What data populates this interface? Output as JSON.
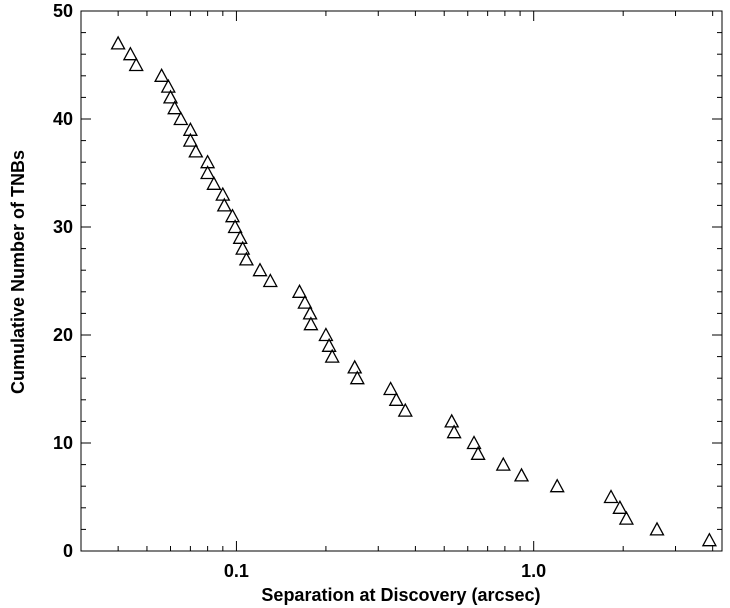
{
  "chart_data": {
    "type": "scatter",
    "xlabel": "Separation at Discovery (arcsec)",
    "ylabel": "Cumulative Number of TNBs",
    "xscale": "log",
    "xlim": [
      0.03,
      4.3
    ],
    "ylim": [
      0,
      50
    ],
    "x_tick_labels": [
      "0.1",
      "1.0"
    ],
    "y_tick_labels": [
      "0",
      "10",
      "20",
      "30",
      "40",
      "50"
    ],
    "marker": "open-triangle",
    "marker_color": "#000000",
    "grid": false,
    "points": [
      {
        "x": 0.04,
        "y": 47
      },
      {
        "x": 0.044,
        "y": 46
      },
      {
        "x": 0.046,
        "y": 45
      },
      {
        "x": 0.056,
        "y": 44
      },
      {
        "x": 0.059,
        "y": 43
      },
      {
        "x": 0.06,
        "y": 42
      },
      {
        "x": 0.062,
        "y": 41
      },
      {
        "x": 0.065,
        "y": 40
      },
      {
        "x": 0.07,
        "y": 39
      },
      {
        "x": 0.07,
        "y": 38
      },
      {
        "x": 0.073,
        "y": 37
      },
      {
        "x": 0.08,
        "y": 36
      },
      {
        "x": 0.08,
        "y": 35
      },
      {
        "x": 0.084,
        "y": 34
      },
      {
        "x": 0.09,
        "y": 33
      },
      {
        "x": 0.091,
        "y": 32
      },
      {
        "x": 0.097,
        "y": 31
      },
      {
        "x": 0.099,
        "y": 30
      },
      {
        "x": 0.103,
        "y": 29
      },
      {
        "x": 0.105,
        "y": 28
      },
      {
        "x": 0.108,
        "y": 27
      },
      {
        "x": 0.12,
        "y": 26
      },
      {
        "x": 0.13,
        "y": 25
      },
      {
        "x": 0.163,
        "y": 24
      },
      {
        "x": 0.17,
        "y": 23
      },
      {
        "x": 0.177,
        "y": 22
      },
      {
        "x": 0.178,
        "y": 21
      },
      {
        "x": 0.2,
        "y": 20
      },
      {
        "x": 0.205,
        "y": 19
      },
      {
        "x": 0.21,
        "y": 18
      },
      {
        "x": 0.25,
        "y": 17
      },
      {
        "x": 0.255,
        "y": 16
      },
      {
        "x": 0.33,
        "y": 15
      },
      {
        "x": 0.345,
        "y": 14
      },
      {
        "x": 0.37,
        "y": 13
      },
      {
        "x": 0.53,
        "y": 12
      },
      {
        "x": 0.54,
        "y": 11
      },
      {
        "x": 0.63,
        "y": 10
      },
      {
        "x": 0.65,
        "y": 9
      },
      {
        "x": 0.79,
        "y": 8
      },
      {
        "x": 0.91,
        "y": 7
      },
      {
        "x": 1.2,
        "y": 6
      },
      {
        "x": 1.82,
        "y": 5
      },
      {
        "x": 1.95,
        "y": 4
      },
      {
        "x": 2.05,
        "y": 3
      },
      {
        "x": 2.6,
        "y": 2
      },
      {
        "x": 3.9,
        "y": 1
      }
    ]
  }
}
